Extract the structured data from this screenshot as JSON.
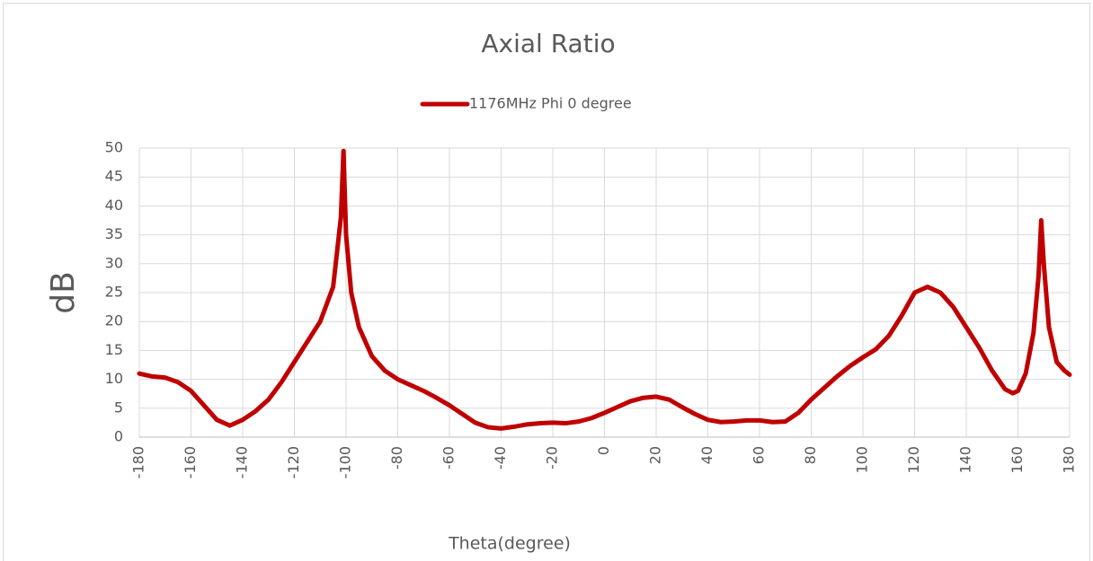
{
  "chart_data": {
    "type": "line",
    "title": "Axial Ratio",
    "x_label": "Theta(degree)",
    "y_label": "dB",
    "x": [
      -180,
      -175,
      -170,
      -165,
      -160,
      -155,
      -150,
      -145,
      -140,
      -135,
      -130,
      -125,
      -120,
      -115,
      -110,
      -105,
      -102,
      -101,
      -100,
      -98,
      -95,
      -90,
      -85,
      -80,
      -75,
      -70,
      -65,
      -60,
      -55,
      -50,
      -45,
      -40,
      -35,
      -30,
      -25,
      -20,
      -15,
      -10,
      -5,
      0,
      5,
      10,
      15,
      20,
      25,
      30,
      35,
      40,
      45,
      50,
      55,
      60,
      65,
      70,
      75,
      80,
      85,
      90,
      95,
      100,
      105,
      110,
      115,
      120,
      125,
      130,
      135,
      140,
      145,
      150,
      155,
      158,
      160,
      163,
      166,
      168,
      169,
      170,
      172,
      175,
      178,
      180
    ],
    "series": [
      {
        "name": "1176MHz Phi 0 degree",
        "color": "#c00000",
        "values": [
          11,
          10.5,
          10.3,
          9.5,
          8,
          5.5,
          3,
          2,
          3,
          4.5,
          6.5,
          9.5,
          13,
          16.5,
          20,
          26,
          38,
          49.5,
          35,
          25,
          19,
          14,
          11.5,
          10,
          9,
          8,
          6.8,
          5.5,
          4,
          2.5,
          1.7,
          1.5,
          1.8,
          2.2,
          2.4,
          2.5,
          2.4,
          2.7,
          3.3,
          4.2,
          5.2,
          6.2,
          6.8,
          7,
          6.5,
          5.2,
          4,
          3,
          2.6,
          2.7,
          2.9,
          2.9,
          2.6,
          2.7,
          4.2,
          6.5,
          8.5,
          10.5,
          12.3,
          13.8,
          15.2,
          17.5,
          21,
          25,
          26,
          25,
          22.5,
          19,
          15.5,
          11.5,
          8.3,
          7.6,
          8,
          11,
          18,
          28,
          37.5,
          30,
          19,
          13,
          11.5,
          10.8
        ]
      }
    ],
    "xlim": [
      -180,
      180
    ],
    "xticks": [
      -180,
      -160,
      -140,
      -120,
      -100,
      -80,
      -60,
      -40,
      -20,
      0,
      20,
      40,
      60,
      80,
      100,
      120,
      140,
      160,
      180
    ],
    "ylim": [
      0,
      50
    ],
    "yticks": [
      0,
      5,
      10,
      15,
      20,
      25,
      30,
      35,
      40,
      45,
      50
    ],
    "grid": true,
    "legend": "top"
  }
}
